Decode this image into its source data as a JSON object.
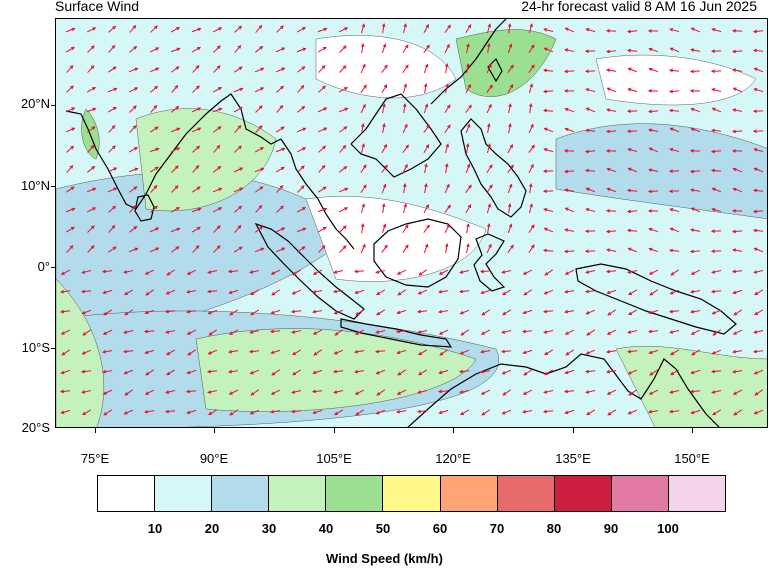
{
  "header": {
    "title": "Surface Wind",
    "valid": "24-hr forecast valid 8 AM 16 Jun 2025"
  },
  "axes": {
    "lat_labels": [
      "20°N",
      "10°N",
      "0°",
      "10°S",
      "20°S"
    ],
    "lon_labels": [
      "75°E",
      "90°E",
      "105°E",
      "120°E",
      "135°E",
      "150°E"
    ]
  },
  "legend": {
    "title": "Wind Speed (km/h)",
    "labels": [
      "10",
      "20",
      "30",
      "40",
      "50",
      "60",
      "70",
      "80",
      "90",
      "100"
    ],
    "colors": [
      "#ffffff",
      "#d6f7f7",
      "#b2dcec",
      "#c4f2bc",
      "#9ae090",
      "#fff98a",
      "#fda474",
      "#e76a6a",
      "#cc1f3f",
      "#e27aa6",
      "#f4d2ea"
    ]
  },
  "map": {
    "arrow_color": "#e8102e",
    "land_outline_color": "#000000"
  }
}
